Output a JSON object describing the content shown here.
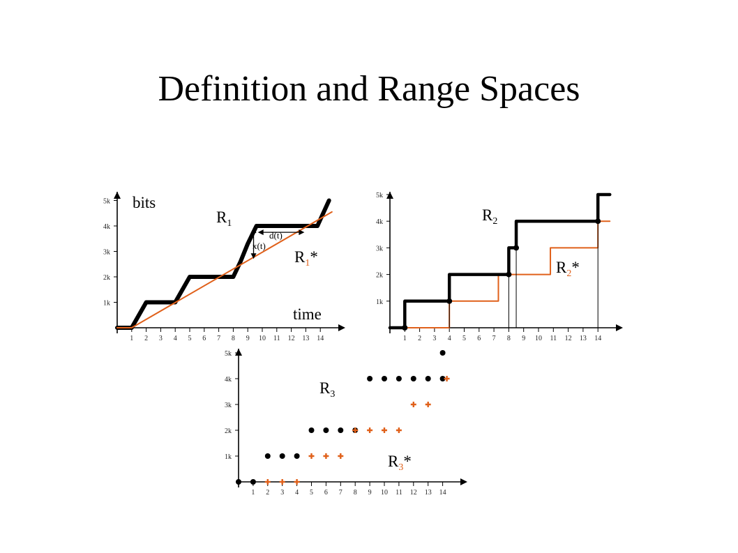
{
  "slide": {
    "title": "Definition and Range Spaces"
  },
  "colors": {
    "black": "#000000",
    "orange": "#e0601a"
  },
  "chart_data": [
    {
      "type": "line",
      "x_ticks": [
        "1",
        "2",
        "3",
        "4",
        "5",
        "6",
        "7",
        "8",
        "9",
        "10",
        "11",
        "12",
        "13",
        "14"
      ],
      "y_ticks": [
        "1k",
        "2k",
        "3k",
        "4k",
        "5k"
      ],
      "ylabel": "bits",
      "xlabel": "time",
      "xlim": [
        0,
        14.8
      ],
      "ylim": [
        0,
        5
      ],
      "series": [
        {
          "name_base": "R",
          "name_sub": "1",
          "name_suffix": "",
          "color": "#000000",
          "x": [
            0,
            1,
            2,
            4,
            5,
            7,
            8,
            8.5,
            9,
            9.6,
            10,
            12,
            13.8,
            14.6
          ],
          "y": [
            0,
            0,
            1,
            1,
            2,
            2,
            2,
            2.6,
            3.3,
            4,
            4,
            4,
            4,
            5
          ]
        },
        {
          "name_base": "R",
          "name_sub": "1",
          "name_suffix": "*",
          "color": "#e0601a",
          "x": [
            0,
            1,
            14.8
          ],
          "y": [
            0,
            0,
            4.55
          ]
        }
      ],
      "annotations": [
        "x(t)",
        "d(t)"
      ]
    },
    {
      "type": "line",
      "x_ticks": [
        "1",
        "2",
        "3",
        "4",
        "5",
        "6",
        "7",
        "8",
        "9",
        "10",
        "11",
        "12",
        "13",
        "14"
      ],
      "y_ticks": [
        "1k",
        "2k",
        "3k",
        "4k",
        "5k"
      ],
      "xlim": [
        0,
        14.8
      ],
      "ylim": [
        0,
        5
      ],
      "series": [
        {
          "name_base": "R",
          "name_sub": "2",
          "name_suffix": "",
          "color": "#000000",
          "x": [
            0,
            1,
            1,
            4,
            4,
            8,
            8,
            8.5,
            8.5,
            14,
            14,
            14.8
          ],
          "y": [
            0,
            0,
            1,
            1,
            2,
            2,
            3,
            3,
            4,
            4,
            5,
            5
          ]
        },
        {
          "name_base": "R",
          "name_sub": "2",
          "name_suffix": "*",
          "color": "#e0601a",
          "x": [
            0,
            4,
            4,
            7.3,
            7.3,
            10.8,
            10.8,
            14,
            14,
            14.8
          ],
          "y": [
            0,
            0,
            1,
            1,
            2,
            2,
            3,
            3,
            4,
            4
          ]
        }
      ]
    },
    {
      "type": "scatter",
      "x_ticks": [
        "1",
        "2",
        "3",
        "4",
        "5",
        "6",
        "7",
        "8",
        "9",
        "10",
        "11",
        "12",
        "13",
        "14"
      ],
      "y_ticks": [
        "1k",
        "2k",
        "3k",
        "4k",
        "5k"
      ],
      "xlim": [
        0,
        14.8
      ],
      "ylim": [
        0,
        5
      ],
      "series": [
        {
          "name_base": "R",
          "name_sub": "3",
          "name_suffix": "",
          "color": "#000000",
          "x": [
            0,
            1,
            2,
            3,
            4,
            5,
            6,
            7,
            8,
            9,
            10,
            11,
            12,
            13,
            14,
            14
          ],
          "y": [
            0,
            0,
            1,
            1,
            1,
            2,
            2,
            2,
            2,
            4,
            4,
            4,
            4,
            4,
            4,
            5
          ]
        },
        {
          "name_base": "R",
          "name_sub": "3",
          "name_suffix": "*",
          "color": "#e0601a",
          "x": [
            2,
            3,
            4,
            5,
            6,
            7,
            8,
            9,
            10,
            11,
            12,
            13,
            14
          ],
          "y": [
            0,
            0,
            0,
            1,
            1,
            1,
            2,
            2,
            2,
            2,
            3,
            3,
            4
          ]
        }
      ]
    }
  ]
}
